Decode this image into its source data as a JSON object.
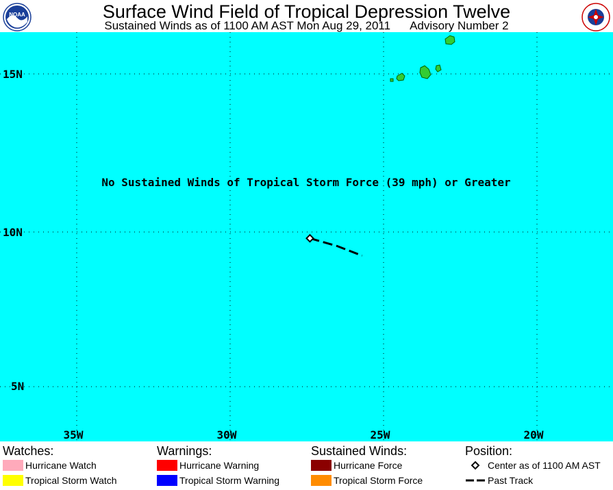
{
  "header": {
    "title": "Surface Wind Field of Tropical Depression Twelve",
    "subtitle": "Sustained Winds as of 1100 AM AST Mon Aug 29, 2011",
    "advisory": "Advisory Number 2"
  },
  "logos": {
    "left_text": "NOAA",
    "right_text": "NATIONAL WEATHER SERVICE"
  },
  "map": {
    "ocean_color": "#00ffff",
    "land_color": "#33cc33",
    "message": "No Sustained Winds of Tropical Storm Force (39 mph) or Greater",
    "lat_labels": [
      "15N",
      "10N",
      "5N"
    ],
    "lon_labels": [
      "35W",
      "30W",
      "25W",
      "20W"
    ],
    "center_position": {
      "lat": 9.8,
      "lon": -27.4
    },
    "past_track": [
      {
        "lat": 9.8,
        "lon": -27.4
      },
      {
        "lat": 9.55,
        "lon": -26.5
      },
      {
        "lat": 9.25,
        "lon": -25.7
      }
    ]
  },
  "legend": {
    "watches": {
      "title": "Watches:",
      "items": [
        {
          "label": "Hurricane Watch",
          "color": "#ffaabb"
        },
        {
          "label": "Tropical Storm Watch",
          "color": "#ffff00"
        }
      ]
    },
    "warnings": {
      "title": "Warnings:",
      "items": [
        {
          "label": "Hurricane Warning",
          "color": "#ff0000"
        },
        {
          "label": "Tropical Storm Warning",
          "color": "#0000ff"
        }
      ]
    },
    "winds": {
      "title": "Sustained Winds:",
      "items": [
        {
          "label": "Hurricane Force",
          "color": "#8b0000"
        },
        {
          "label": "Tropical Storm Force",
          "color": "#ff8c00"
        }
      ]
    },
    "position": {
      "title": "Position:",
      "items": [
        {
          "label": "Center as of 1100 AM AST",
          "symbol": "diamond-icon"
        },
        {
          "label": "Past Track",
          "symbol": "dashed-line-icon"
        }
      ]
    }
  }
}
